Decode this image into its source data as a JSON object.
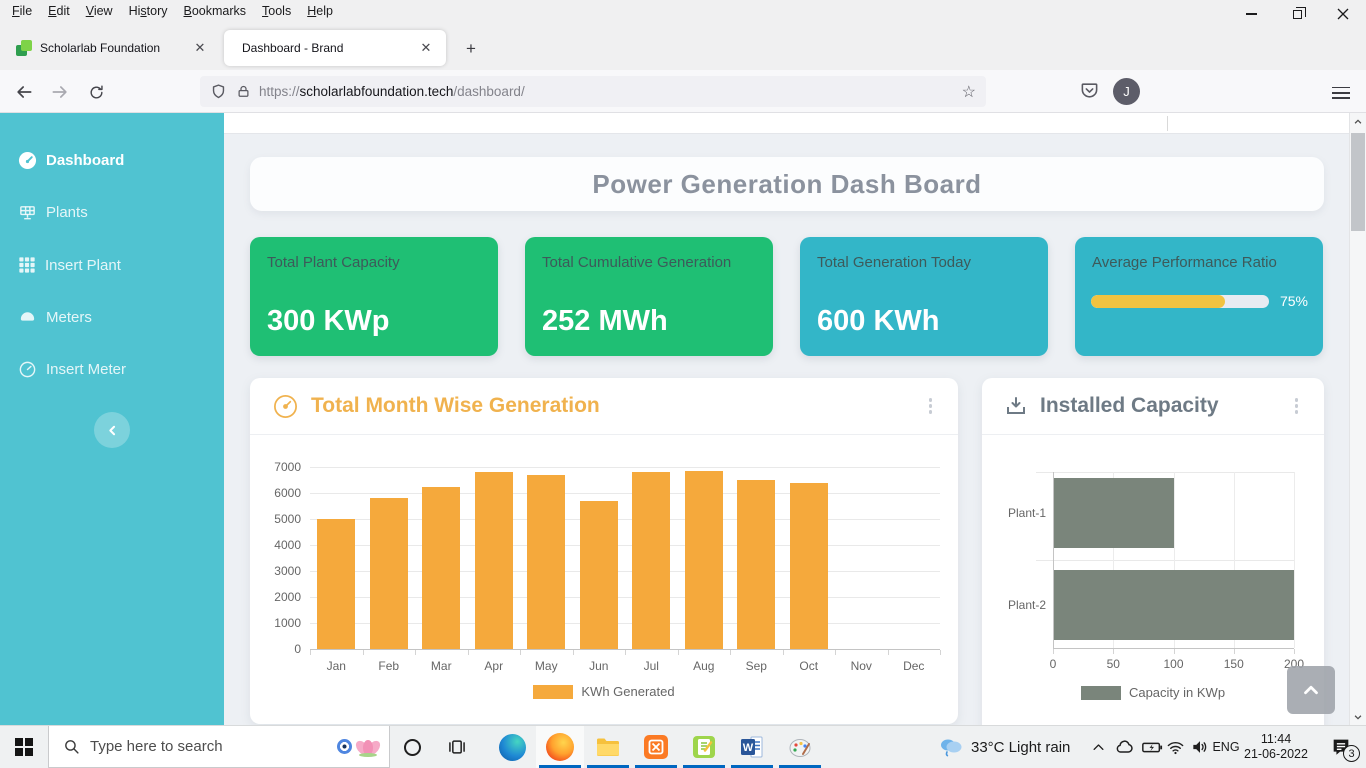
{
  "browser": {
    "menu": [
      {
        "label": "File",
        "accel": 0
      },
      {
        "label": "Edit",
        "accel": 0
      },
      {
        "label": "View",
        "accel": 0
      },
      {
        "label": "History",
        "accel": 2
      },
      {
        "label": "Bookmarks",
        "accel": 0
      },
      {
        "label": "Tools",
        "accel": 0
      },
      {
        "label": "Help",
        "accel": 0
      }
    ],
    "tabs": [
      {
        "title": "Scholarlab Foundation",
        "active": false
      },
      {
        "title": "Dashboard - Brand",
        "active": true
      }
    ],
    "new_tab_label": "+",
    "url": {
      "scheme": "https://",
      "host": "scholarlabfoundation.tech",
      "path": "/dashboard/"
    },
    "account_initial": "J"
  },
  "sidebar": {
    "items": [
      {
        "label": "Dashboard",
        "icon": "speedometer-icon",
        "active": true
      },
      {
        "label": "Plants",
        "icon": "solar-panel-icon",
        "active": false
      },
      {
        "label": "Insert Plant",
        "icon": "grid-icon",
        "active": false
      },
      {
        "label": "Meters",
        "icon": "meter-icon",
        "active": false
      },
      {
        "label": "Insert Meter",
        "icon": "gauge-icon",
        "active": false
      }
    ]
  },
  "page": {
    "title": "Power Generation Dash Board",
    "stat_cards": [
      {
        "label": "Total Plant Capacity",
        "value": "300 KWp",
        "bg": "#1fbf74"
      },
      {
        "label": "Total Cumulative Generation",
        "value": "252 MWh",
        "bg": "#1fbf74"
      },
      {
        "label": "Total Generation Today",
        "value": "600 KWh",
        "bg": "#33b6c8"
      },
      {
        "label": "Average Performance Ratio",
        "progress_percent": 75,
        "progress_label": "75%",
        "bg": "#33b6c8",
        "bar_color": "#f0c341",
        "track_color": "#e7ebf2"
      }
    ]
  },
  "chart_data": [
    {
      "type": "bar",
      "title": "Total Month Wise Generation",
      "categories": [
        "Jan",
        "Feb",
        "Mar",
        "Apr",
        "May",
        "Jun",
        "Jul",
        "Aug",
        "Sep",
        "Oct",
        "Nov",
        "Dec"
      ],
      "series": [
        {
          "name": "KWh Generated",
          "values": [
            5000,
            5800,
            6250,
            6800,
            6700,
            5700,
            6800,
            6850,
            6500,
            6400,
            0,
            0
          ]
        }
      ],
      "ylabel": "",
      "xlabel": "",
      "ylim": [
        0,
        7000
      ],
      "ytick_step": 1000,
      "bar_color": "#f5a93c",
      "legend": "KWh Generated",
      "legend_position": "bottom",
      "grid": true
    },
    {
      "type": "horizontal-bar",
      "title": "Installed Capacity",
      "categories": [
        "Plant-1",
        "Plant-2"
      ],
      "series": [
        {
          "name": "Capacity in KWp",
          "values": [
            100,
            200
          ]
        }
      ],
      "xlim": [
        0,
        200
      ],
      "xticks": [
        0,
        50,
        100,
        150,
        200
      ],
      "bar_color": "#7a857b",
      "legend": "Capacity in KWp",
      "legend_position": "bottom",
      "grid": true
    }
  ],
  "taskbar": {
    "search_placeholder": "Type here to search",
    "weather": "33°C Light rain",
    "language": "ENG",
    "time": "11:44",
    "date": "21-06-2022",
    "notification_count": "3"
  }
}
